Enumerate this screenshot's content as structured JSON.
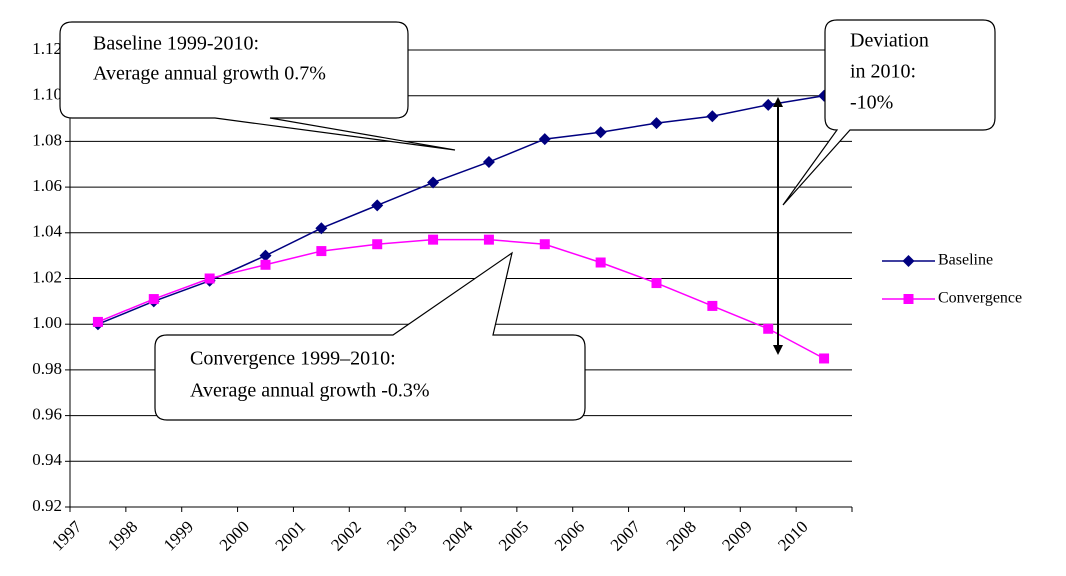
{
  "chart_data": {
    "type": "line",
    "categories": [
      "1997",
      "1998",
      "1999",
      "2000",
      "2001",
      "2002",
      "2003",
      "2004",
      "2005",
      "2006",
      "2007",
      "2008",
      "2009",
      "2010"
    ],
    "series": [
      {
        "name": "Baseline",
        "color": "#000080",
        "marker": "diamond",
        "values": [
          1.0,
          1.01,
          1.019,
          1.03,
          1.042,
          1.052,
          1.062,
          1.071,
          1.081,
          1.084,
          1.088,
          1.091,
          1.096,
          1.1
        ]
      },
      {
        "name": "Convergence",
        "color": "#ff00ff",
        "marker": "square",
        "values": [
          1.001,
          1.011,
          1.02,
          1.026,
          1.032,
          1.035,
          1.037,
          1.037,
          1.035,
          1.027,
          1.018,
          1.008,
          0.998,
          0.985
        ]
      }
    ],
    "ylim": [
      0.92,
      1.12
    ],
    "yticks": [
      0.92,
      0.94,
      0.96,
      0.98,
      {
        "value": 1.0,
        "label": "1.00"
      },
      1.02,
      1.04,
      1.06,
      1.08,
      {
        "value": 1.1,
        "label": "1.10"
      },
      1.12
    ],
    "grid": true,
    "legend": "right",
    "annotations": [
      {
        "lines": [
          "Baseline 1999-2010:",
          "Average annual growth 0.7%"
        ]
      },
      {
        "lines": [
          "Convergence 1999–2010:",
          "Average annual growth -0.3%"
        ]
      },
      {
        "lines": [
          "Deviation",
          "in 2010:",
          "-10%"
        ]
      }
    ]
  }
}
